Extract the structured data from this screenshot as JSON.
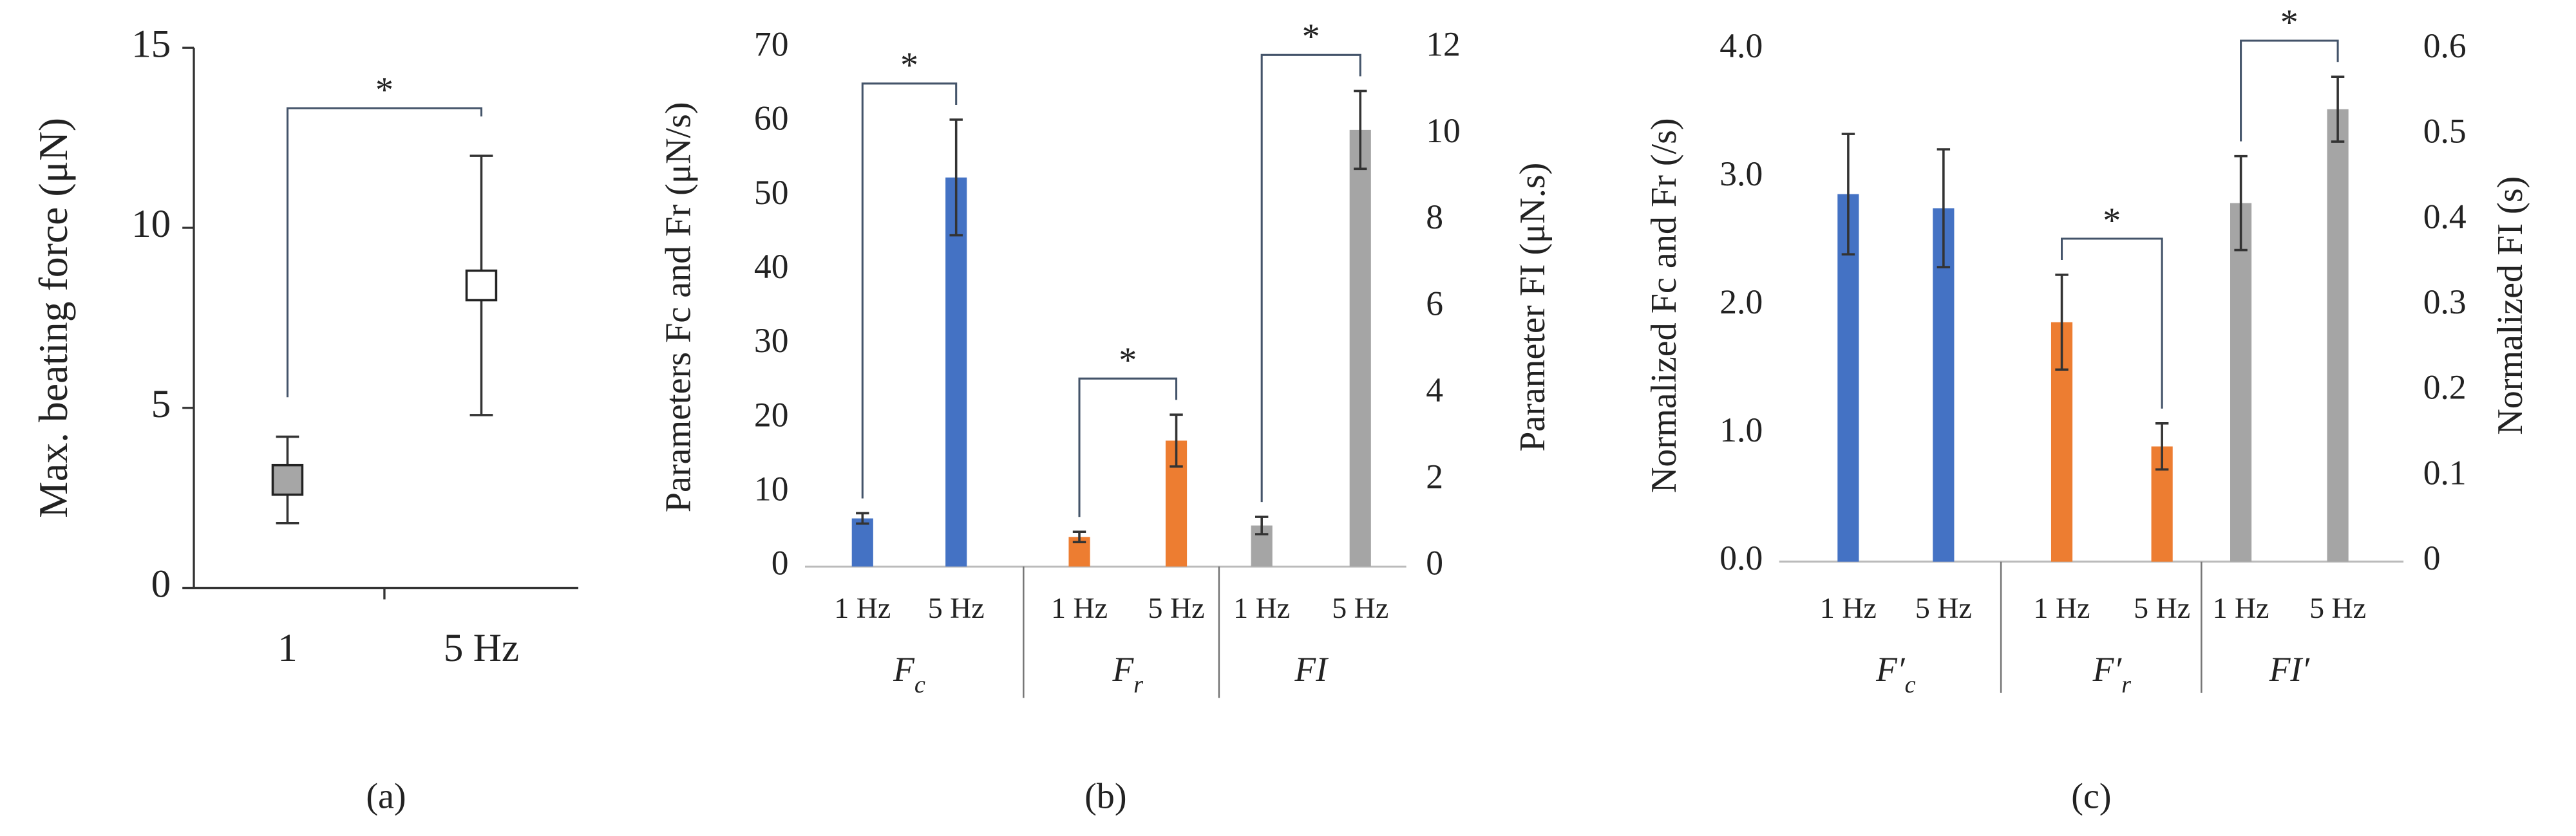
{
  "chart_data": [
    {
      "type": "point",
      "label": "(a)",
      "ylabel": "Max. beating force (μN)",
      "categories": [
        "1",
        "5 Hz"
      ],
      "values": [
        3.0,
        8.4
      ],
      "errors": [
        1.2,
        3.6
      ],
      "colors": [
        "#a6a6a6",
        "#ffffff"
      ],
      "ylim": [
        0,
        15
      ],
      "yticks": [
        0,
        5,
        10,
        15
      ],
      "annotation": "*"
    },
    {
      "type": "bar",
      "label": "(b)",
      "ylabel": "Parameters  Fc and Fr (μN/s)",
      "y2label": "Parameter FI (μN.s)",
      "ylim": [
        0,
        70
      ],
      "yticks": [
        0,
        10,
        20,
        30,
        40,
        50,
        60,
        70
      ],
      "y2lim": [
        0,
        12
      ],
      "y2ticks": [
        0,
        2,
        4,
        6,
        8,
        10,
        12
      ],
      "groups": [
        {
          "label": {
            "base": "F",
            "sub": "c"
          },
          "categories": [
            "1 Hz",
            "5 Hz"
          ],
          "values": [
            6.5,
            52.5
          ],
          "errors": [
            0.7,
            7.8
          ],
          "color": "#4472c4",
          "annotation": "*"
        },
        {
          "label": {
            "base": "F",
            "sub": "r"
          },
          "categories": [
            "1 Hz",
            "5 Hz"
          ],
          "values": [
            4.0,
            17.0
          ],
          "errors": [
            0.7,
            3.5
          ],
          "color": "#ed7d31",
          "annotation": "*"
        },
        {
          "label": {
            "base": "FI"
          },
          "categories": [
            "1 Hz",
            "5 Hz"
          ],
          "values": [
            0.95,
            10.1
          ],
          "errors": [
            0.2,
            0.9
          ],
          "color": "#a5a5a5",
          "axis": "y2",
          "annotation": "*"
        }
      ]
    },
    {
      "type": "bar",
      "label": "(c)",
      "ylabel": "Normalized  Fc and Fr (/s)",
      "y2label": "Normalized FI (s)",
      "ylim": [
        0,
        4
      ],
      "yticks": [
        {
          "value": 0,
          "label": "0.0"
        },
        {
          "value": 1,
          "label": "1.0"
        },
        {
          "value": 2,
          "label": "2.0"
        },
        {
          "value": 3,
          "label": "3.0"
        },
        {
          "value": 4,
          "label": "4.0"
        }
      ],
      "y2lim": [
        0,
        0.6
      ],
      "y2ticks": [
        0,
        0.1,
        0.2,
        0.3,
        0.4,
        0.5,
        0.6
      ],
      "groups": [
        {
          "label": {
            "base": "F′",
            "sub": "c"
          },
          "categories": [
            "1 Hz",
            "5 Hz"
          ],
          "values": [
            2.87,
            2.76
          ],
          "errors": [
            0.47,
            0.46
          ],
          "color": "#4472c4"
        },
        {
          "label": {
            "base": "F′",
            "sub": "r"
          },
          "categories": [
            "1 Hz",
            "5 Hz"
          ],
          "values": [
            1.87,
            0.9
          ],
          "errors": [
            0.37,
            0.18
          ],
          "color": "#ed7d31",
          "annotation": "*"
        },
        {
          "label": {
            "base": "FI′"
          },
          "categories": [
            "1 Hz",
            "5 Hz"
          ],
          "values": [
            0.42,
            0.53
          ],
          "errors": [
            0.055,
            0.038
          ],
          "color": "#a5a5a5",
          "axis": "y2",
          "annotation": "*"
        }
      ]
    }
  ]
}
